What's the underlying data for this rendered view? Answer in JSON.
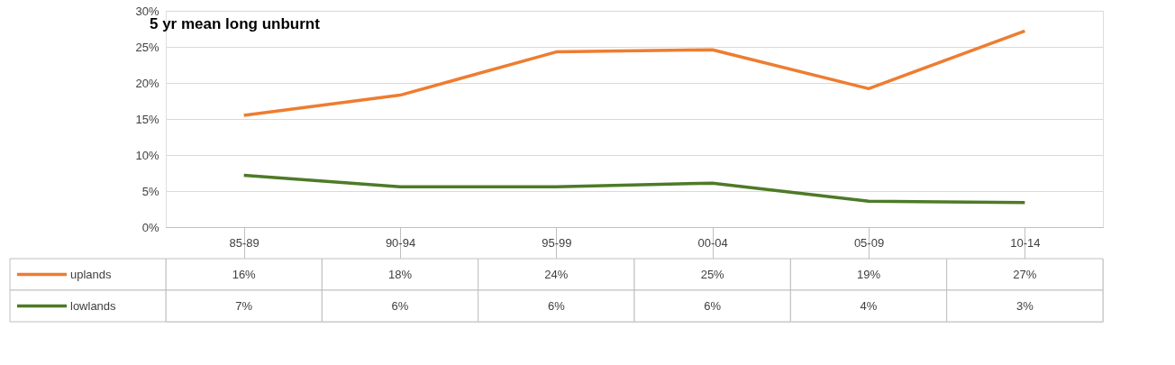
{
  "chart_data": {
    "type": "line",
    "title": "5 yr mean long unburnt",
    "categories": [
      "85-89",
      "90-94",
      "95-99",
      "00-04",
      "05-09",
      "10-14"
    ],
    "series": [
      {
        "name": "uplands",
        "color": "#ed7d31",
        "values": [
          15.5,
          18.3,
          24.3,
          24.6,
          19.2,
          27.2
        ],
        "value_labels": [
          "16%",
          "18%",
          "24%",
          "25%",
          "19%",
          "27%"
        ]
      },
      {
        "name": "lowlands",
        "color": "#4e7a27",
        "values": [
          7.2,
          5.6,
          5.6,
          6.1,
          3.6,
          3.4
        ],
        "value_labels": [
          "7%",
          "6%",
          "6%",
          "6%",
          "4%",
          "3%"
        ]
      }
    ],
    "ylim": [
      0,
      30
    ],
    "yticks": [
      {
        "value": 0,
        "label": "0%"
      },
      {
        "value": 5,
        "label": "5%"
      },
      {
        "value": 10,
        "label": "10%"
      },
      {
        "value": 15,
        "label": "15%"
      },
      {
        "value": 20,
        "label": "20%"
      },
      {
        "value": 25,
        "label": "25%"
      },
      {
        "value": 30,
        "label": "30%"
      }
    ],
    "grid": "y",
    "marker": "none",
    "line_style": "solid",
    "legend": "bottom left"
  }
}
